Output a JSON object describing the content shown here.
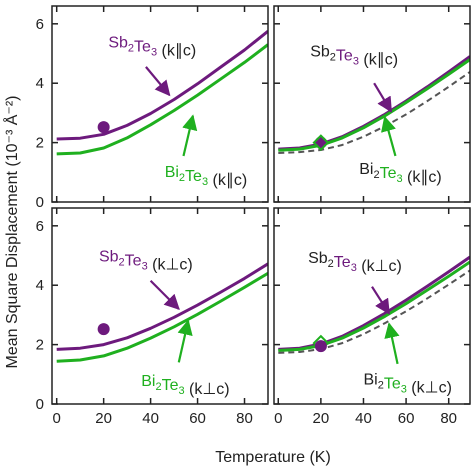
{
  "figure": {
    "xlabel": "Temperature (K)",
    "ylabel": "Mean Square Displacement (10⁻³ Å⁻²)"
  },
  "colors": {
    "sb2te3": "#6d1a7d",
    "bi2te3": "#1fb01f",
    "dashed": "#555555"
  },
  "chart_data": [
    {
      "panel": "top-left",
      "type": "line",
      "xlim": [
        -2,
        90
      ],
      "ylim": [
        0,
        6.6
      ],
      "xticks": [
        0,
        20,
        40,
        60,
        80
      ],
      "yticks": [
        0,
        2,
        4,
        6
      ],
      "show_x_ticklabels": false,
      "show_y_ticklabels": true,
      "series": [
        {
          "name": "Sb2Te3 (k∥c)",
          "color": "#6d1a7d",
          "style": "solid",
          "x": [
            0,
            10,
            20,
            30,
            40,
            50,
            60,
            70,
            80,
            90
          ],
          "y": [
            2.12,
            2.15,
            2.28,
            2.58,
            2.98,
            3.45,
            3.98,
            4.55,
            5.12,
            5.75
          ]
        },
        {
          "name": "Bi2Te3 (k∥c)",
          "color": "#1fb01f",
          "style": "solid",
          "x": [
            0,
            10,
            20,
            30,
            40,
            50,
            60,
            70,
            80,
            90
          ],
          "y": [
            1.62,
            1.65,
            1.82,
            2.16,
            2.6,
            3.08,
            3.6,
            4.15,
            4.7,
            5.3
          ]
        }
      ],
      "points": [
        {
          "x": 20,
          "y": 2.52,
          "color": "#6d1a7d",
          "marker": "circle"
        }
      ],
      "annotations": [
        {
          "key": "sb",
          "parts": [
            {
              "t": "Sb",
              "c": "#6d1a7d"
            },
            {
              "t": "2",
              "c": "#6d1a7d",
              "sub": true
            },
            {
              "t": "Te",
              "c": "#6d1a7d"
            },
            {
              "t": "3",
              "c": "#6d1a7d",
              "sub": true
            },
            {
              "t": " (k∥c)",
              "c": "#222222"
            }
          ],
          "text_at": [
            22,
            5.2
          ],
          "arrow_from": [
            38,
            4.55
          ],
          "arrow_to": [
            48,
            3.6
          ],
          "color": "#6d1a7d"
        },
        {
          "key": "bi",
          "parts": [
            {
              "t": "Bi",
              "c": "#1fb01f"
            },
            {
              "t": "2",
              "c": "#1fb01f",
              "sub": true
            },
            {
              "t": "Te",
              "c": "#1fb01f"
            },
            {
              "t": "3",
              "c": "#1fb01f",
              "sub": true
            },
            {
              "t": " (k∥c)",
              "c": "#222222"
            }
          ],
          "text_at": [
            46,
            0.85
          ],
          "arrow_from": [
            54,
            1.55
          ],
          "arrow_to": [
            58,
            2.9
          ],
          "color": "#1fb01f"
        }
      ]
    },
    {
      "panel": "top-right",
      "type": "line",
      "xlim": [
        -2,
        90
      ],
      "ylim": [
        0,
        6.6
      ],
      "xticks": [
        0,
        20,
        40,
        60,
        80
      ],
      "yticks": [
        0,
        2,
        4,
        6
      ],
      "show_x_ticklabels": false,
      "show_y_ticklabels": false,
      "series": [
        {
          "name": "Sb2Te3 (k∥c)",
          "color": "#6d1a7d",
          "style": "solid",
          "x": [
            0,
            10,
            20,
            30,
            40,
            50,
            60,
            70,
            80,
            90
          ],
          "y": [
            1.78,
            1.82,
            1.95,
            2.2,
            2.55,
            2.95,
            3.4,
            3.88,
            4.38,
            4.9
          ]
        },
        {
          "name": "Bi2Te3 (k∥c)",
          "color": "#1fb01f",
          "style": "solid",
          "x": [
            0,
            10,
            20,
            30,
            40,
            50,
            60,
            70,
            80,
            90
          ],
          "y": [
            1.74,
            1.78,
            1.91,
            2.16,
            2.5,
            2.9,
            3.35,
            3.82,
            4.3,
            4.8
          ]
        },
        {
          "name": "",
          "color": "#555555",
          "style": "dashed",
          "x": [
            0,
            10,
            20,
            30,
            40,
            50,
            60,
            70,
            80,
            90
          ],
          "y": [
            1.65,
            1.68,
            1.75,
            1.92,
            2.2,
            2.55,
            2.95,
            3.4,
            3.88,
            4.38
          ]
        }
      ],
      "points": [
        {
          "x": 20,
          "y": 2.0,
          "color": "#6d1a7d",
          "marker": "circle"
        },
        {
          "x": 20,
          "y": 2.0,
          "color": "#1fb01f",
          "marker": "diamond"
        }
      ],
      "annotations": [
        {
          "key": "sb",
          "parts": [
            {
              "t": "Sb",
              "c": "#222222"
            },
            {
              "t": "2",
              "c": "#222222",
              "sub": true
            },
            {
              "t": "Te",
              "c": "#6d1a7d"
            },
            {
              "t": "3",
              "c": "#6d1a7d",
              "sub": true
            },
            {
              "t": " (k∥c)",
              "c": "#222222"
            }
          ],
          "text_at": [
            15,
            4.9
          ],
          "arrow_from": [
            45,
            4.0
          ],
          "arrow_to": [
            53,
            3.05
          ],
          "color": "#6d1a7d"
        },
        {
          "key": "bi",
          "parts": [
            {
              "t": "Bi",
              "c": "#222222"
            },
            {
              "t": "2",
              "c": "#222222",
              "sub": true
            },
            {
              "t": "Te",
              "c": "#1fb01f"
            },
            {
              "t": "3",
              "c": "#1fb01f",
              "sub": true
            },
            {
              "t": " (k∥c)",
              "c": "#222222"
            }
          ],
          "text_at": [
            38,
            0.95
          ],
          "arrow_from": [
            55,
            1.55
          ],
          "arrow_to": [
            50,
            2.85
          ],
          "color": "#1fb01f"
        }
      ]
    },
    {
      "panel": "bottom-left",
      "type": "line",
      "xlim": [
        -2,
        90
      ],
      "ylim": [
        0,
        6.6
      ],
      "xticks": [
        0,
        20,
        40,
        60,
        80
      ],
      "yticks": [
        0,
        2,
        4,
        6
      ],
      "show_x_ticklabels": true,
      "show_y_ticklabels": true,
      "series": [
        {
          "name": "Sb2Te3 (k⊥c)",
          "color": "#6d1a7d",
          "style": "solid",
          "x": [
            0,
            10,
            20,
            30,
            40,
            50,
            60,
            70,
            80,
            90
          ],
          "y": [
            1.84,
            1.88,
            2.0,
            2.23,
            2.55,
            2.92,
            3.33,
            3.77,
            4.23,
            4.72
          ]
        },
        {
          "name": "Bi2Te3 (k⊥c)",
          "color": "#1fb01f",
          "style": "solid",
          "x": [
            0,
            10,
            20,
            30,
            40,
            50,
            60,
            70,
            80,
            90
          ],
          "y": [
            1.44,
            1.48,
            1.62,
            1.88,
            2.22,
            2.6,
            3.02,
            3.47,
            3.93,
            4.4
          ]
        }
      ],
      "points": [
        {
          "x": 20,
          "y": 2.52,
          "color": "#6d1a7d",
          "marker": "circle"
        }
      ],
      "annotations": [
        {
          "key": "sb",
          "parts": [
            {
              "t": "Sb",
              "c": "#6d1a7d"
            },
            {
              "t": "2",
              "c": "#6d1a7d",
              "sub": true
            },
            {
              "t": "Te",
              "c": "#6d1a7d"
            },
            {
              "t": "3",
              "c": "#6d1a7d",
              "sub": true
            },
            {
              "t": " (k⊥c)",
              "c": "#222222"
            }
          ],
          "text_at": [
            18,
            4.8
          ],
          "arrow_from": [
            40,
            4.15
          ],
          "arrow_to": [
            52,
            3.2
          ],
          "color": "#6d1a7d"
        },
        {
          "key": "bi",
          "parts": [
            {
              "t": "Bi",
              "c": "#1fb01f"
            },
            {
              "t": "2",
              "c": "#1fb01f",
              "sub": true
            },
            {
              "t": "Te",
              "c": "#1fb01f"
            },
            {
              "t": "3",
              "c": "#1fb01f",
              "sub": true
            },
            {
              "t": " (k⊥c)",
              "c": "#222222"
            }
          ],
          "text_at": [
            36,
            0.6
          ],
          "arrow_from": [
            52,
            1.4
          ],
          "arrow_to": [
            56,
            2.8
          ],
          "color": "#1fb01f"
        }
      ]
    },
    {
      "panel": "bottom-right",
      "type": "line",
      "xlim": [
        -2,
        90
      ],
      "ylim": [
        0,
        6.6
      ],
      "xticks": [
        0,
        20,
        40,
        60,
        80
      ],
      "yticks": [
        0,
        2,
        4,
        6
      ],
      "show_x_ticklabels": true,
      "show_y_ticklabels": false,
      "series": [
        {
          "name": "Sb2Te3 (k⊥c)",
          "color": "#6d1a7d",
          "style": "solid",
          "x": [
            0,
            10,
            20,
            30,
            40,
            50,
            60,
            70,
            80,
            90
          ],
          "y": [
            1.84,
            1.88,
            2.02,
            2.28,
            2.64,
            3.05,
            3.5,
            3.97,
            4.45,
            4.95
          ]
        },
        {
          "name": "Bi2Te3 (k⊥c)",
          "color": "#1fb01f",
          "style": "solid",
          "x": [
            0,
            10,
            20,
            30,
            40,
            50,
            60,
            70,
            80,
            90
          ],
          "y": [
            1.8,
            1.84,
            1.97,
            2.22,
            2.56,
            2.95,
            3.38,
            3.84,
            4.3,
            4.78
          ]
        },
        {
          "name": "",
          "color": "#555555",
          "style": "dashed",
          "x": [
            0,
            10,
            20,
            30,
            40,
            50,
            60,
            70,
            80,
            90
          ],
          "y": [
            1.72,
            1.75,
            1.85,
            2.05,
            2.35,
            2.72,
            3.12,
            3.56,
            4.02,
            4.5
          ]
        }
      ],
      "points": [
        {
          "x": 20,
          "y": 2.05,
          "color": "#1fb01f",
          "marker": "diamond"
        },
        {
          "x": 20,
          "y": 1.95,
          "color": "#6d1a7d",
          "marker": "circle"
        }
      ],
      "annotations": [
        {
          "key": "sb",
          "parts": [
            {
              "t": "Sb",
              "c": "#222222"
            },
            {
              "t": "2",
              "c": "#222222",
              "sub": true
            },
            {
              "t": "Te",
              "c": "#6d1a7d"
            },
            {
              "t": "3",
              "c": "#6d1a7d",
              "sub": true
            },
            {
              "t": " (k⊥c)",
              "c": "#222222"
            }
          ],
          "text_at": [
            14,
            4.75
          ],
          "arrow_from": [
            44,
            3.95
          ],
          "arrow_to": [
            52,
            3.05
          ],
          "color": "#6d1a7d"
        },
        {
          "key": "bi",
          "parts": [
            {
              "t": "Bi",
              "c": "#222222"
            },
            {
              "t": "2",
              "c": "#222222",
              "sub": true
            },
            {
              "t": "Te",
              "c": "#1fb01f"
            },
            {
              "t": "3",
              "c": "#1fb01f",
              "sub": true
            },
            {
              "t": " (k⊥c)",
              "c": "#222222"
            }
          ],
          "text_at": [
            40,
            0.65
          ],
          "arrow_from": [
            56,
            1.35
          ],
          "arrow_to": [
            52,
            2.7
          ],
          "color": "#1fb01f"
        }
      ]
    }
  ]
}
